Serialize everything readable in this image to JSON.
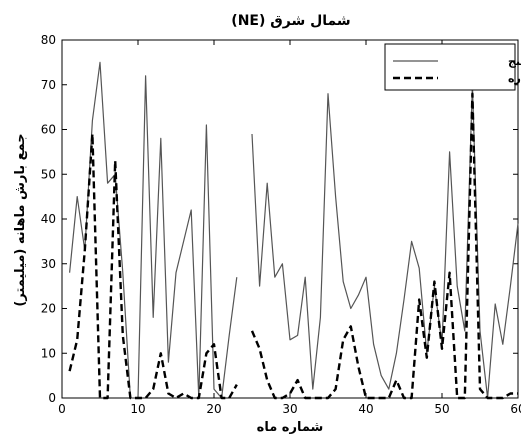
{
  "chart_data": {
    "type": "line",
    "title": "شمال شرق (NE)",
    "xlabel": "شماره ماه",
    "ylabel": "جمع بارش ماهانه (میلیمتر)",
    "xlim": [
      0,
      60
    ],
    "ylim": [
      0,
      80
    ],
    "xticks": [
      0,
      10,
      20,
      30,
      40,
      50,
      60
    ],
    "yticks": [
      0,
      10,
      20,
      30,
      40,
      50,
      60,
      70,
      80
    ],
    "grid": false,
    "legend_position": "top-right",
    "series": [
      {
        "name": "باراسنج",
        "style": "solid",
        "color": "#555555",
        "x": [
          1,
          2,
          3,
          4,
          5,
          6,
          7,
          8,
          9,
          10,
          11,
          12,
          13,
          14,
          15,
          16,
          17,
          18,
          19,
          20,
          21,
          22,
          23,
          null,
          25,
          26,
          27,
          28,
          29,
          30,
          31,
          32,
          33,
          34,
          35,
          36,
          37,
          38,
          39,
          40,
          41,
          42,
          43,
          44,
          45,
          46,
          47,
          48,
          49,
          50,
          51,
          52,
          53,
          54,
          55,
          56,
          57,
          58,
          59,
          60
        ],
        "values": [
          28,
          45,
          33,
          62,
          75,
          48,
          50,
          28,
          0,
          0,
          72,
          18,
          58,
          8,
          28,
          35,
          42,
          0,
          61,
          2,
          0,
          14,
          27,
          null,
          59,
          25,
          48,
          27,
          30,
          13,
          14,
          27,
          2,
          18,
          68,
          45,
          26,
          20,
          23,
          27,
          12,
          5,
          2,
          10,
          22,
          35,
          29,
          10,
          25,
          12,
          55,
          25,
          15,
          70,
          15,
          0,
          21,
          12,
          25,
          39
        ]
      },
      {
        "name": "ماهواره",
        "style": "dashed",
        "color": "#000000",
        "x": [
          1,
          2,
          3,
          4,
          5,
          6,
          7,
          8,
          9,
          10,
          11,
          12,
          13,
          14,
          15,
          16,
          17,
          18,
          19,
          20,
          21,
          22,
          23,
          null,
          25,
          26,
          27,
          28,
          29,
          30,
          31,
          32,
          33,
          34,
          35,
          36,
          37,
          38,
          39,
          40,
          41,
          42,
          43,
          44,
          45,
          46,
          47,
          48,
          49,
          50,
          51,
          52,
          53,
          54,
          55,
          56,
          57,
          58,
          59,
          60
        ],
        "values": [
          6,
          13,
          33,
          59,
          0,
          0,
          53,
          14,
          0,
          0,
          0,
          2,
          10,
          1,
          0,
          1,
          0,
          0,
          10,
          12,
          0,
          0,
          3,
          null,
          15,
          11,
          4,
          0,
          0,
          1,
          4,
          0,
          0,
          0,
          0,
          2,
          13,
          16,
          7,
          0,
          0,
          0,
          0,
          4,
          0,
          0,
          22,
          9,
          26,
          11,
          28,
          0,
          0,
          68,
          2,
          0,
          0,
          0,
          1,
          1
        ]
      }
    ]
  }
}
